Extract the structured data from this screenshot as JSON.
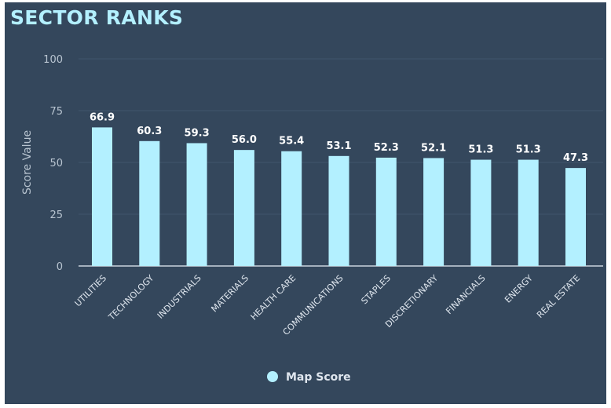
{
  "chart_data": {
    "type": "bar",
    "title": "SECTOR RANKS",
    "xlabel": "",
    "ylabel": "Score Value",
    "ylim": [
      0,
      100
    ],
    "yticks": [
      0,
      25,
      50,
      75,
      100
    ],
    "grid": true,
    "legend_placement": "bottom",
    "categories": [
      "UTILITIES",
      "TECHNOLOGY",
      "INDUSTRIALS",
      "MATERIALS",
      "HEALTH CARE",
      "COMMUNICATIONS",
      "STAPLES",
      "DISCRETIONARY",
      "FINANCIALS",
      "ENERGY",
      "REAL ESTATE"
    ],
    "series": [
      {
        "name": "Map Score",
        "values": [
          66.9,
          60.3,
          59.3,
          56.0,
          55.4,
          53.1,
          52.3,
          52.1,
          51.3,
          51.3,
          47.3
        ],
        "color": "#b3f0ff"
      }
    ],
    "colors": {
      "background": "#34475c",
      "bar": "#b3f0ff",
      "title": "#b3f0ff",
      "grid": "#41566c"
    }
  }
}
